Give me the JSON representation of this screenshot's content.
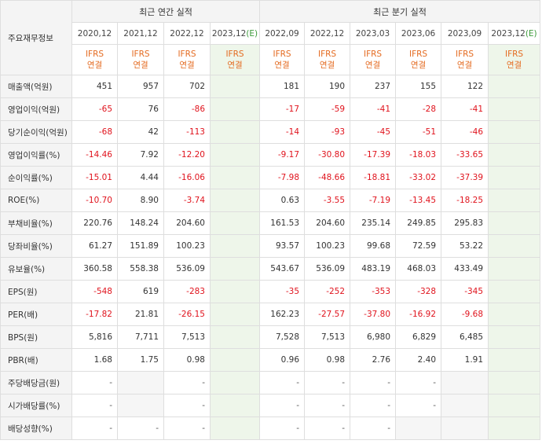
{
  "header": {
    "corner": "주요재무정보",
    "annual_title": "최근 연간 실적",
    "quarterly_title": "최근 분기 실적",
    "ifrs_line1": "IFRS",
    "ifrs_line2": "연결",
    "annual_periods": [
      "2020,12",
      "2021,12",
      "2022,12",
      "2023,12"
    ],
    "quarterly_periods": [
      "2022,09",
      "2022,12",
      "2023,03",
      "2023,06",
      "2023,09",
      "2023,12"
    ],
    "estimate_mark": "(E)"
  },
  "rows": [
    {
      "label": "매출액(억원)",
      "values": [
        "451",
        "957",
        "702",
        "",
        "181",
        "190",
        "237",
        "155",
        "122",
        ""
      ]
    },
    {
      "label": "영업이익(억원)",
      "values": [
        "-65",
        "76",
        "-86",
        "",
        "-17",
        "-59",
        "-41",
        "-28",
        "-41",
        ""
      ]
    },
    {
      "label": "당기순이익(억원)",
      "values": [
        "-68",
        "42",
        "-113",
        "",
        "-14",
        "-93",
        "-45",
        "-51",
        "-46",
        ""
      ]
    },
    {
      "label": "영업이익률(%)",
      "values": [
        "-14.46",
        "7.92",
        "-12.20",
        "",
        "-9.17",
        "-30.80",
        "-17.39",
        "-18.03",
        "-33.65",
        ""
      ]
    },
    {
      "label": "순이익률(%)",
      "values": [
        "-15.01",
        "4.44",
        "-16.06",
        "",
        "-7.98",
        "-48.66",
        "-18.81",
        "-33.02",
        "-37.39",
        ""
      ]
    },
    {
      "label": "ROE(%)",
      "values": [
        "-10.70",
        "8.90",
        "-3.74",
        "",
        "0.63",
        "-3.55",
        "-7.19",
        "-13.45",
        "-18.25",
        ""
      ]
    },
    {
      "label": "부채비율(%)",
      "values": [
        "220.76",
        "148.24",
        "204.60",
        "",
        "161.53",
        "204.60",
        "235.14",
        "249.85",
        "295.83",
        ""
      ]
    },
    {
      "label": "당좌비율(%)",
      "values": [
        "61.27",
        "151.89",
        "100.23",
        "",
        "93.57",
        "100.23",
        "99.68",
        "72.59",
        "53.22",
        ""
      ]
    },
    {
      "label": "유보율(%)",
      "values": [
        "360.58",
        "558.38",
        "536.09",
        "",
        "543.67",
        "536.09",
        "483.19",
        "468.03",
        "433.49",
        ""
      ]
    },
    {
      "label": "EPS(원)",
      "values": [
        "-548",
        "619",
        "-283",
        "",
        "-35",
        "-252",
        "-353",
        "-328",
        "-345",
        ""
      ]
    },
    {
      "label": "PER(배)",
      "values": [
        "-17.82",
        "21.81",
        "-26.15",
        "",
        "162.23",
        "-27.57",
        "-37.80",
        "-16.92",
        "-9.68",
        ""
      ]
    },
    {
      "label": "BPS(원)",
      "values": [
        "5,816",
        "7,711",
        "7,513",
        "",
        "7,528",
        "7,513",
        "6,980",
        "6,829",
        "6,485",
        ""
      ]
    },
    {
      "label": "PBR(배)",
      "values": [
        "1.68",
        "1.75",
        "0.98",
        "",
        "0.96",
        "0.98",
        "2.76",
        "2.40",
        "1.91",
        ""
      ]
    },
    {
      "label": "주당배당금(원)",
      "values": [
        "-",
        "",
        "-",
        "",
        "-",
        "-",
        "-",
        "-",
        "",
        ""
      ]
    },
    {
      "label": "시가배당률(%)",
      "values": [
        "-",
        "",
        "-",
        "",
        "-",
        "-",
        "-",
        "-",
        "",
        ""
      ]
    },
    {
      "label": "배당성향(%)",
      "values": [
        "-",
        "-",
        "-",
        "",
        "-",
        "-",
        "-",
        "",
        "",
        ""
      ]
    }
  ]
}
